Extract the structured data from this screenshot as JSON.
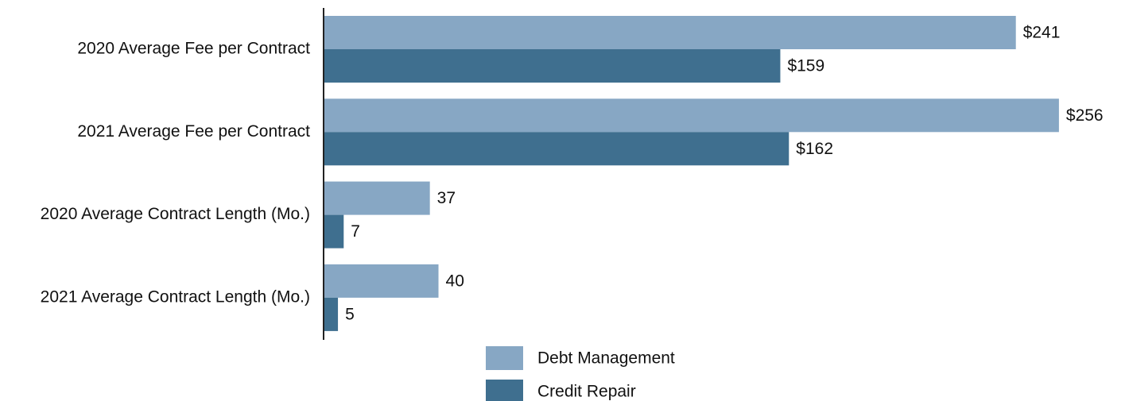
{
  "chart_data": {
    "type": "hbar",
    "categories": [
      "2020 Average Fee per Contract",
      "2021 Average Fee per Contract",
      "2020 Average Contract Length (Mo.)",
      "2021 Average Contract Length (Mo.)"
    ],
    "series": [
      {
        "name": "Debt Management",
        "color": "#87a7c4",
        "values": [
          241,
          256,
          37,
          40
        ],
        "value_labels": [
          "$241",
          "$256",
          "37",
          "40"
        ]
      },
      {
        "name": "Credit Repair",
        "color": "#3f6f8f",
        "values": [
          159,
          162,
          7,
          5
        ],
        "value_labels": [
          "$159",
          "$162",
          "7",
          "5"
        ]
      }
    ],
    "xlim": [
      0,
      279
    ],
    "legend": "bottom"
  }
}
